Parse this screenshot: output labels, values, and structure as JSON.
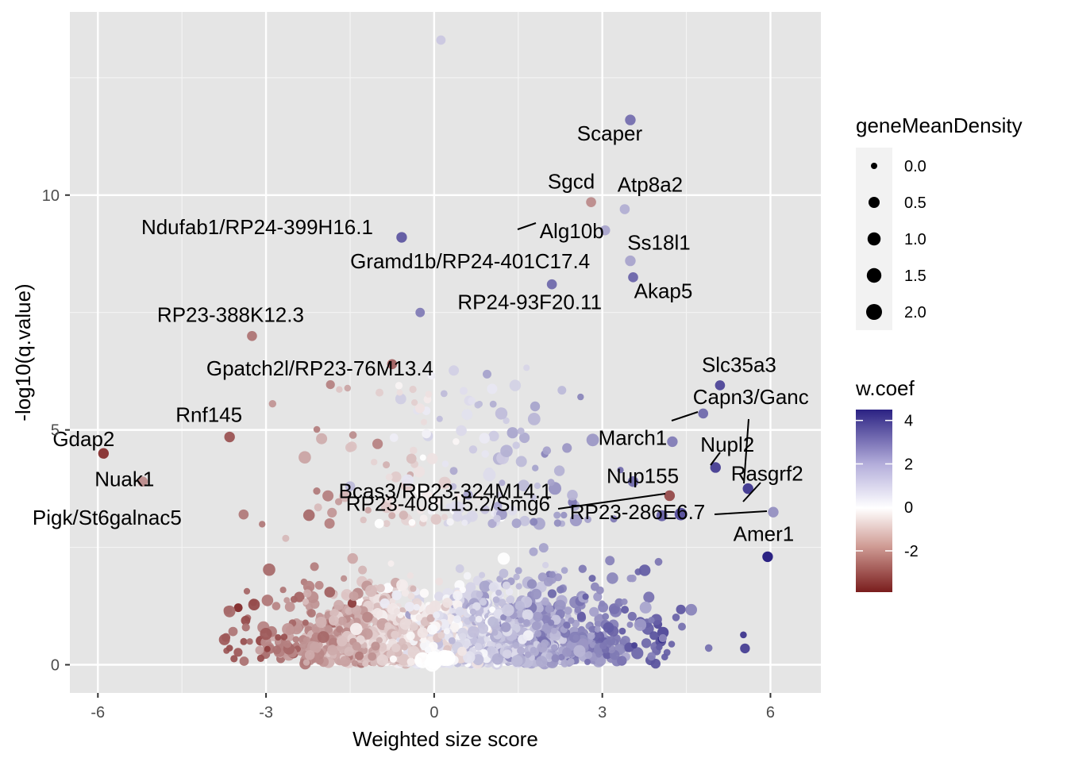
{
  "chart_data": {
    "type": "scatter",
    "xlabel": "Weighted size score",
    "ylabel": "-log10(q.value)",
    "xlim": [
      -6.5,
      6.9
    ],
    "ylim": [
      -0.6,
      13.9
    ],
    "x_ticks": [
      -6,
      -3,
      0,
      3,
      6
    ],
    "x_tick_labels": [
      "-6",
      "-3",
      "0",
      "3",
      "6"
    ],
    "y_ticks": [
      0,
      5,
      10
    ],
    "y_tick_labels": [
      "0",
      "5",
      "10"
    ],
    "grid": true,
    "background": "#e5e5e5",
    "color_scale": {
      "low": "#7a1d1d",
      "mid": "#ffffff",
      "high": "#2b2283",
      "domain": [
        -3.9,
        4.5
      ]
    },
    "legend": {
      "position": "right",
      "size_title": "geneMeanDensity",
      "size_breaks": [
        "0.0",
        "0.5",
        "1.0",
        "1.5",
        "2.0"
      ],
      "color_title": "w.coef",
      "color_breaks": [
        "4",
        "2",
        "0",
        "-2"
      ]
    },
    "labeled_points": [
      {
        "label": "Scaper",
        "x": 3.5,
        "y": 11.6,
        "w": 2.5,
        "d": 0.4
      },
      {
        "label": "Sgcd",
        "x": 2.8,
        "y": 9.85,
        "w": -1.6,
        "d": 0.3
      },
      {
        "label": "Atp8a2",
        "x": 3.4,
        "y": 9.7,
        "w": 1.2,
        "d": 0.3
      },
      {
        "label": "Alg10b",
        "x": 3.05,
        "y": 9.25,
        "w": 1.4,
        "d": 0.3
      },
      {
        "label": "Ndufab1/RP24-399H16.1",
        "x": -0.58,
        "y": 9.1,
        "w": 3.0,
        "d": 0.4
      },
      {
        "label": "Ss18l1",
        "x": 3.5,
        "y": 8.6,
        "w": 1.4,
        "d": 0.4
      },
      {
        "label": "Gramd1b/RP24-401C17.4",
        "x": 2.1,
        "y": 8.1,
        "w": 2.6,
        "d": 0.3
      },
      {
        "label": "Akap5",
        "x": 3.55,
        "y": 8.25,
        "w": 2.7,
        "d": 0.3
      },
      {
        "label": "RP24-93F20.11",
        "x": -0.25,
        "y": 7.5,
        "w": 2.2,
        "d": 0.2
      },
      {
        "label": "RP23-388K12.3",
        "x": -3.25,
        "y": 7.0,
        "w": -2.0,
        "d": 0.3
      },
      {
        "label": "Gpatch2l/RP23-76M13.4",
        "x": -0.75,
        "y": 6.4,
        "w": -2.4,
        "d": 0.3
      },
      {
        "label": "Slc35a3",
        "x": 5.1,
        "y": 5.95,
        "w": 3.4,
        "d": 0.3
      },
      {
        "label": "Capn3/Ganc",
        "x": 4.8,
        "y": 5.35,
        "w": 2.6,
        "d": 0.3
      },
      {
        "label": "March1",
        "x": 4.25,
        "y": 4.75,
        "w": 2.2,
        "d": 0.4
      },
      {
        "label": "Rnf145",
        "x": -3.65,
        "y": 4.85,
        "w": -2.6,
        "d": 0.4
      },
      {
        "label": "Gdap2",
        "x": -5.9,
        "y": 4.5,
        "w": -3.3,
        "d": 0.4
      },
      {
        "label": "Nupl2",
        "x": 5.02,
        "y": 4.2,
        "w": 3.6,
        "d": 0.4
      },
      {
        "label": "Nuak1",
        "x": -5.2,
        "y": 3.9,
        "w": -1.6,
        "d": 0.3
      },
      {
        "label": "Nup155",
        "x": 3.55,
        "y": 3.9,
        "w": 2.6,
        "d": 0.4
      },
      {
        "label": "Bcas3/RP23-324M14.1",
        "x": -1.5,
        "y": 3.8,
        "w": 1.0,
        "d": 0.3
      },
      {
        "label": "Rasgrf2",
        "x": 5.6,
        "y": 3.75,
        "w": 3.8,
        "d": 0.4
      },
      {
        "label": "RP23-408L15.2/Smg6",
        "x": 4.2,
        "y": 3.6,
        "w": -2.8,
        "d": 0.4
      },
      {
        "label": "Pigk/St6galnac5",
        "x": -3.4,
        "y": 3.2,
        "w": -1.9,
        "d": 0.3
      },
      {
        "label": "RP23-286E6.7",
        "x": 6.05,
        "y": 3.25,
        "w": 1.8,
        "d": 0.4
      },
      {
        "label": "Amer1",
        "x": 5.95,
        "y": 2.3,
        "w": 4.5,
        "d": 0.4
      }
    ],
    "background_point_count": 2600
  }
}
